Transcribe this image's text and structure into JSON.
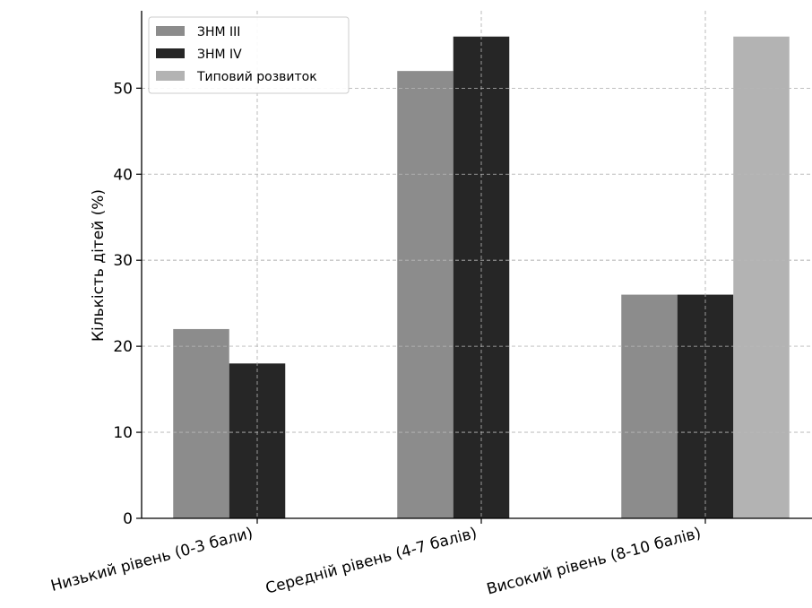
{
  "chart_data": {
    "type": "bar",
    "categories": [
      "Низький рівень (0-3 бали)",
      "Середній рівень (4-7 балів)",
      "Високий рівень (8-10 балів)"
    ],
    "series": [
      {
        "name": "ЗНМ III",
        "values": [
          22,
          52,
          26
        ],
        "color": "#8c8c8c"
      },
      {
        "name": "ЗНМ IV",
        "values": [
          18,
          56,
          26
        ],
        "color": "#262626"
      },
      {
        "name": "Типовий розвиток",
        "values": [
          null,
          null,
          56
        ],
        "color": "#b3b3b3"
      }
    ],
    "title": "",
    "xlabel": "",
    "ylabel": "Кількість дітей (%)",
    "ylim": [
      0,
      59
    ],
    "yticks": [
      0,
      10,
      20,
      30,
      40,
      50
    ],
    "grid": true,
    "legend_position": "top-left"
  }
}
